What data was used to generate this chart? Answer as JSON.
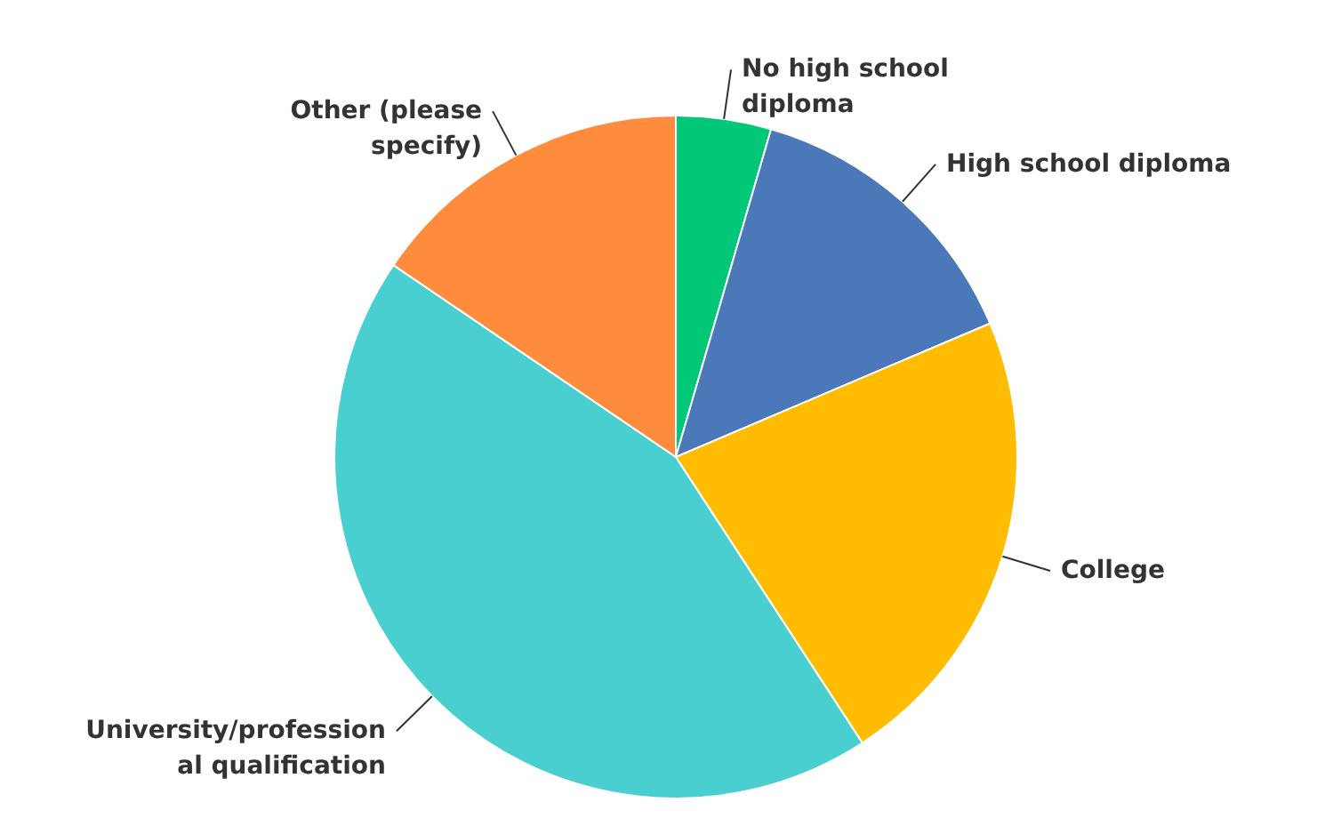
{
  "chart_data": {
    "type": "pie",
    "categories": [
      "No high school diploma",
      "High school diploma",
      "College",
      "University/professional qualification",
      "Other (please specify)"
    ],
    "values": [
      4.5,
      14.1,
      22.2,
      43.7,
      15.5
    ],
    "colors": [
      "#00c878",
      "#4a78b8",
      "#ffbc00",
      "#4acfd0",
      "#ff8b3d"
    ]
  }
}
